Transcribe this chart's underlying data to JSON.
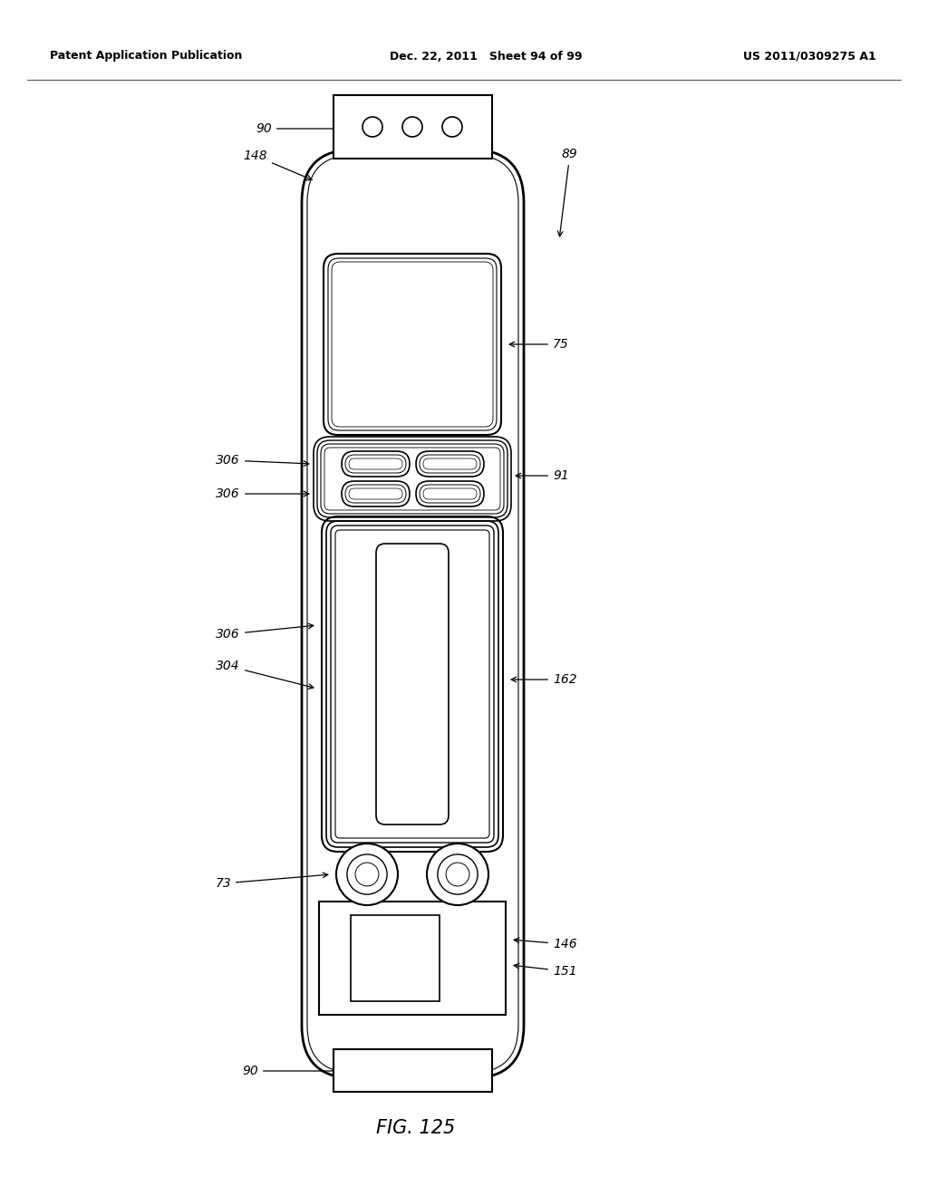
{
  "title": "FIG. 125",
  "header_left": "Patent Application Publication",
  "header_center": "Dec. 22, 2011   Sheet 94 of 99",
  "header_right": "US 2011/0309275 A1",
  "bg_color": "#ffffff",
  "line_color": "#000000",
  "figsize": [
    10.24,
    13.2
  ],
  "dpi": 100
}
